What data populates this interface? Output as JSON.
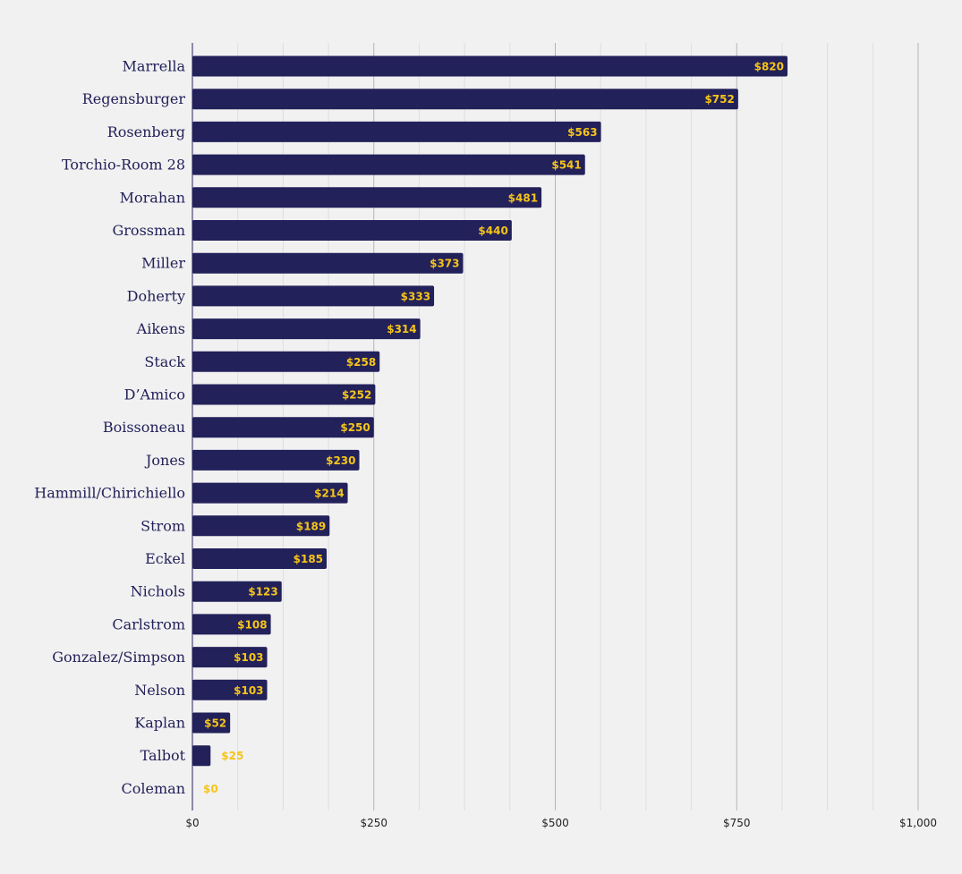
{
  "chart_data": {
    "type": "bar",
    "orientation": "horizontal",
    "categories": [
      "Marrella",
      "Regensburger",
      "Rosenberg",
      "Torchio-Room 28",
      "Morahan",
      "Grossman",
      "Miller",
      "Doherty",
      "Aikens",
      "Stack",
      "D’Amico",
      "Boissoneau",
      "Jones",
      "Hammill/Chirichiello",
      "Strom",
      "Eckel",
      "Nichols",
      "Carlstrom",
      "Gonzalez/Simpson",
      "Nelson",
      "Kaplan",
      "Talbot",
      "Coleman"
    ],
    "values": [
      820,
      752,
      563,
      541,
      481,
      440,
      373,
      333,
      314,
      258,
      252,
      250,
      230,
      214,
      189,
      185,
      123,
      108,
      103,
      103,
      52,
      25,
      0
    ],
    "data_labels": [
      "$820",
      "$752",
      "$563",
      "$541",
      "$481",
      "$440",
      "$373",
      "$333",
      "$314",
      "$258",
      "$252",
      "$250",
      "$230",
      "$214",
      "$189",
      "$185",
      "$123",
      "$108",
      "$103",
      "$103",
      "$52",
      "$25",
      "$0"
    ],
    "xlim": [
      0,
      1000
    ],
    "x_ticks": [
      0,
      250,
      500,
      750,
      1000
    ],
    "x_tick_labels": [
      "$0",
      "$250",
      "$500",
      "$750",
      "$1,000"
    ],
    "minor_grid_step": 62.5,
    "title": "",
    "xlabel": "",
    "ylabel": "",
    "grid": true,
    "legend": "none",
    "colors": {
      "bar": "#23215a",
      "label": "#f5c518",
      "background": "#f1f1f1",
      "major_grid": "#b5b5b5",
      "minor_grid": "#dedede",
      "axis": "#23215a"
    }
  }
}
